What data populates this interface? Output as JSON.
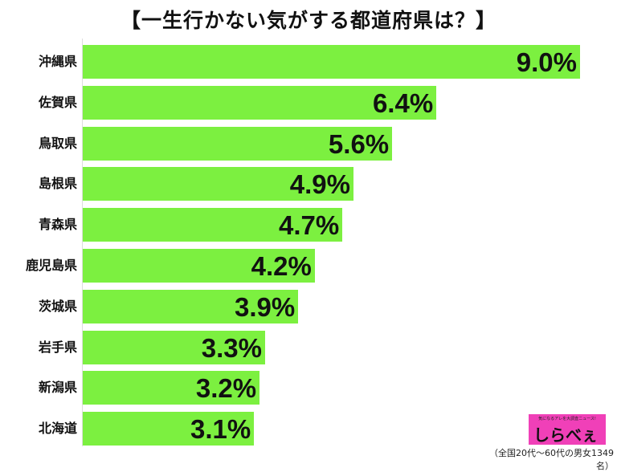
{
  "chart_data": {
    "type": "bar",
    "orientation": "horizontal",
    "title": "【一生行かない気がする都道府県は？】",
    "categories": [
      "沖縄県",
      "佐賀県",
      "鳥取県",
      "島根県",
      "青森県",
      "鹿児島県",
      "茨城県",
      "岩手県",
      "新潟県",
      "北海道"
    ],
    "values": [
      9.0,
      6.4,
      5.6,
      4.9,
      4.7,
      4.2,
      3.9,
      3.3,
      3.2,
      3.1
    ],
    "value_labels": [
      "9.0%",
      "6.4%",
      "5.6%",
      "4.9%",
      "4.7%",
      "4.2%",
      "3.9%",
      "3.3%",
      "3.2%",
      "3.1%"
    ],
    "unit": "%",
    "xlim": [
      0,
      9.0
    ],
    "grid": false,
    "bar_color": "#7cf040"
  },
  "logo": {
    "text": "しらべぇ",
    "tagline": "気になるアレを大調査ニュース!",
    "color": "#f040b8"
  },
  "note": "（全国20代～60代の男女1349名）"
}
